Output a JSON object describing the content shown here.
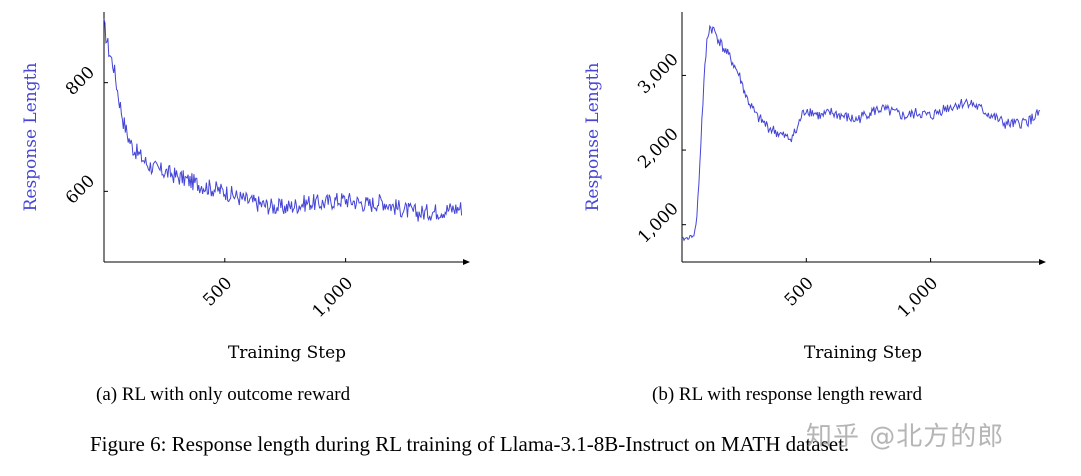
{
  "chart_data": [
    {
      "type": "line",
      "panel_caption": "(a) RL with only outcome reward",
      "xlabel": "Training Step",
      "ylabel": "Response Length",
      "line_color": "#4545d6",
      "xlim": [
        0,
        1490
      ],
      "ylim": [
        470,
        930
      ],
      "xticks": [
        500,
        1000
      ],
      "xtick_labels": [
        "500",
        "1,000"
      ],
      "yticks": [
        600,
        800
      ],
      "ytick_labels": [
        "600",
        "800"
      ],
      "series": [
        {
          "name": "Response Length",
          "x": [
            0,
            20,
            40,
            60,
            80,
            100,
            120,
            150,
            180,
            220,
            260,
            300,
            350,
            400,
            450,
            500,
            550,
            600,
            650,
            700,
            750,
            800,
            850,
            900,
            950,
            1000,
            1050,
            1100,
            1150,
            1200,
            1250,
            1300,
            1350,
            1400,
            1450,
            1480
          ],
          "values": [
            905,
            860,
            830,
            775,
            730,
            700,
            680,
            665,
            650,
            640,
            635,
            628,
            620,
            612,
            605,
            600,
            590,
            582,
            576,
            572,
            570,
            575,
            580,
            578,
            583,
            585,
            580,
            576,
            582,
            572,
            565,
            560,
            562,
            565,
            568,
            570
          ],
          "noise_amplitude": 16
        }
      ]
    },
    {
      "type": "line",
      "panel_caption": "(b) RL with response length reward",
      "xlabel": "Training Step",
      "ylabel": "Response Length",
      "line_color": "#4545d6",
      "xlim": [
        0,
        1440
      ],
      "ylim": [
        500,
        3850
      ],
      "xticks": [
        500,
        1000
      ],
      "xtick_labels": [
        "500",
        "1,000"
      ],
      "yticks": [
        1000,
        2000,
        3000
      ],
      "ytick_labels": [
        "1,000",
        "2,000",
        "3,000"
      ],
      "series": [
        {
          "name": "Response Length",
          "x": [
            0,
            30,
            50,
            60,
            70,
            80,
            90,
            100,
            110,
            130,
            160,
            200,
            230,
            260,
            300,
            350,
            400,
            430,
            460,
            480,
            500,
            530,
            560,
            600,
            650,
            700,
            750,
            800,
            850,
            900,
            950,
            1000,
            1050,
            1100,
            1150,
            1200,
            1250,
            1300,
            1350,
            1400,
            1440
          ],
          "values": [
            800,
            830,
            870,
            1100,
            1700,
            2400,
            3000,
            3450,
            3650,
            3600,
            3400,
            3200,
            3000,
            2700,
            2450,
            2300,
            2200,
            2150,
            2250,
            2450,
            2550,
            2500,
            2450,
            2500,
            2450,
            2400,
            2500,
            2550,
            2500,
            2450,
            2500,
            2450,
            2550,
            2600,
            2650,
            2550,
            2450,
            2350,
            2350,
            2400,
            2500
          ],
          "noise_amplitude": 75
        }
      ]
    }
  ],
  "figure_caption": "Figure 6: Response length during RL training of Llama-3.1-8B-Instruct on MATH dataset.",
  "watermark": "知乎 @北方的郎"
}
